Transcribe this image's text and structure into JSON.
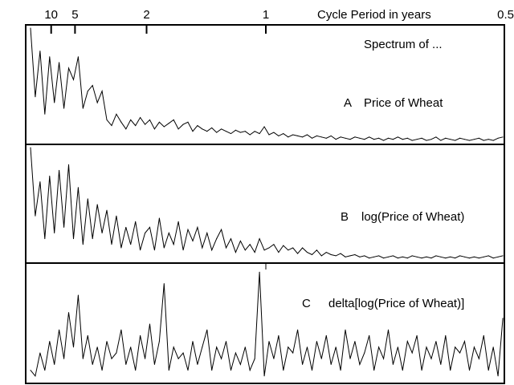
{
  "chart_data": {
    "type": "line",
    "title": "Spectrum of ...",
    "xlabel": "Cycle Period in years",
    "x_axis_scale": "frequency (cycles/year), labelled by period",
    "xlim_frequency": [
      0,
      2
    ],
    "x_ticks": [
      {
        "label": "10",
        "period": 10
      },
      {
        "label": "5",
        "period": 5
      },
      {
        "label": "2",
        "period": 2
      },
      {
        "label": "1",
        "period": 1
      },
      {
        "label": "0.5",
        "period": 0.5
      }
    ],
    "frequency_step": 0.02,
    "panels": [
      {
        "letter": "A",
        "name": "Price of Wheat",
        "values": [
          1.0,
          0.4,
          0.8,
          0.25,
          0.75,
          0.35,
          0.7,
          0.3,
          0.65,
          0.55,
          0.75,
          0.3,
          0.45,
          0.5,
          0.35,
          0.45,
          0.2,
          0.15,
          0.25,
          0.18,
          0.12,
          0.2,
          0.15,
          0.22,
          0.16,
          0.2,
          0.12,
          0.18,
          0.14,
          0.17,
          0.2,
          0.12,
          0.16,
          0.18,
          0.1,
          0.15,
          0.12,
          0.1,
          0.13,
          0.09,
          0.12,
          0.1,
          0.08,
          0.11,
          0.09,
          0.1,
          0.07,
          0.1,
          0.08,
          0.14,
          0.07,
          0.09,
          0.06,
          0.08,
          0.05,
          0.07,
          0.06,
          0.05,
          0.07,
          0.04,
          0.06,
          0.05,
          0.04,
          0.06,
          0.03,
          0.05,
          0.04,
          0.03,
          0.05,
          0.04,
          0.03,
          0.05,
          0.03,
          0.04,
          0.02,
          0.04,
          0.03,
          0.05,
          0.03,
          0.04,
          0.02,
          0.03,
          0.04,
          0.02,
          0.03,
          0.05,
          0.02,
          0.04,
          0.03,
          0.02,
          0.04,
          0.03,
          0.02,
          0.03,
          0.04,
          0.02,
          0.03,
          0.02,
          0.04,
          0.05
        ]
      },
      {
        "letter": "B",
        "name": "log(Price of Wheat)",
        "values": [
          1.0,
          0.4,
          0.7,
          0.2,
          0.75,
          0.25,
          0.8,
          0.3,
          0.85,
          0.2,
          0.65,
          0.15,
          0.55,
          0.2,
          0.5,
          0.25,
          0.45,
          0.15,
          0.4,
          0.12,
          0.3,
          0.15,
          0.35,
          0.1,
          0.25,
          0.3,
          0.1,
          0.38,
          0.12,
          0.25,
          0.15,
          0.35,
          0.1,
          0.28,
          0.18,
          0.3,
          0.12,
          0.25,
          0.1,
          0.2,
          0.28,
          0.12,
          0.2,
          0.08,
          0.18,
          0.1,
          0.15,
          0.08,
          0.2,
          0.1,
          0.12,
          0.15,
          0.08,
          0.14,
          0.1,
          0.12,
          0.07,
          0.12,
          0.08,
          0.06,
          0.1,
          0.05,
          0.08,
          0.06,
          0.05,
          0.07,
          0.04,
          0.05,
          0.06,
          0.04,
          0.05,
          0.03,
          0.04,
          0.05,
          0.03,
          0.04,
          0.05,
          0.03,
          0.04,
          0.03,
          0.05,
          0.04,
          0.03,
          0.04,
          0.03,
          0.05,
          0.04,
          0.03,
          0.04,
          0.03,
          0.05,
          0.04,
          0.03,
          0.04,
          0.03,
          0.04,
          0.05,
          0.03,
          0.04,
          0.05
        ]
      },
      {
        "letter": "C",
        "name": "delta[log(Price of Wheat)]",
        "values": [
          0.1,
          0.05,
          0.25,
          0.1,
          0.35,
          0.15,
          0.45,
          0.2,
          0.6,
          0.3,
          0.75,
          0.2,
          0.4,
          0.15,
          0.3,
          0.1,
          0.35,
          0.2,
          0.25,
          0.45,
          0.15,
          0.3,
          0.1,
          0.4,
          0.2,
          0.5,
          0.15,
          0.35,
          0.85,
          0.1,
          0.3,
          0.2,
          0.25,
          0.1,
          0.35,
          0.15,
          0.3,
          0.45,
          0.1,
          0.3,
          0.2,
          0.35,
          0.1,
          0.25,
          0.15,
          0.3,
          0.1,
          0.2,
          0.95,
          0.05,
          0.35,
          0.2,
          0.4,
          0.1,
          0.3,
          0.25,
          0.45,
          0.15,
          0.3,
          0.1,
          0.35,
          0.2,
          0.4,
          0.15,
          0.3,
          0.1,
          0.45,
          0.2,
          0.35,
          0.15,
          0.25,
          0.4,
          0.1,
          0.3,
          0.2,
          0.45,
          0.15,
          0.3,
          0.1,
          0.35,
          0.25,
          0.4,
          0.1,
          0.3,
          0.2,
          0.35,
          0.15,
          0.4,
          0.1,
          0.3,
          0.25,
          0.35,
          0.1,
          0.3,
          0.2,
          0.4,
          0.1,
          0.3,
          0.05,
          0.55
        ]
      }
    ]
  }
}
